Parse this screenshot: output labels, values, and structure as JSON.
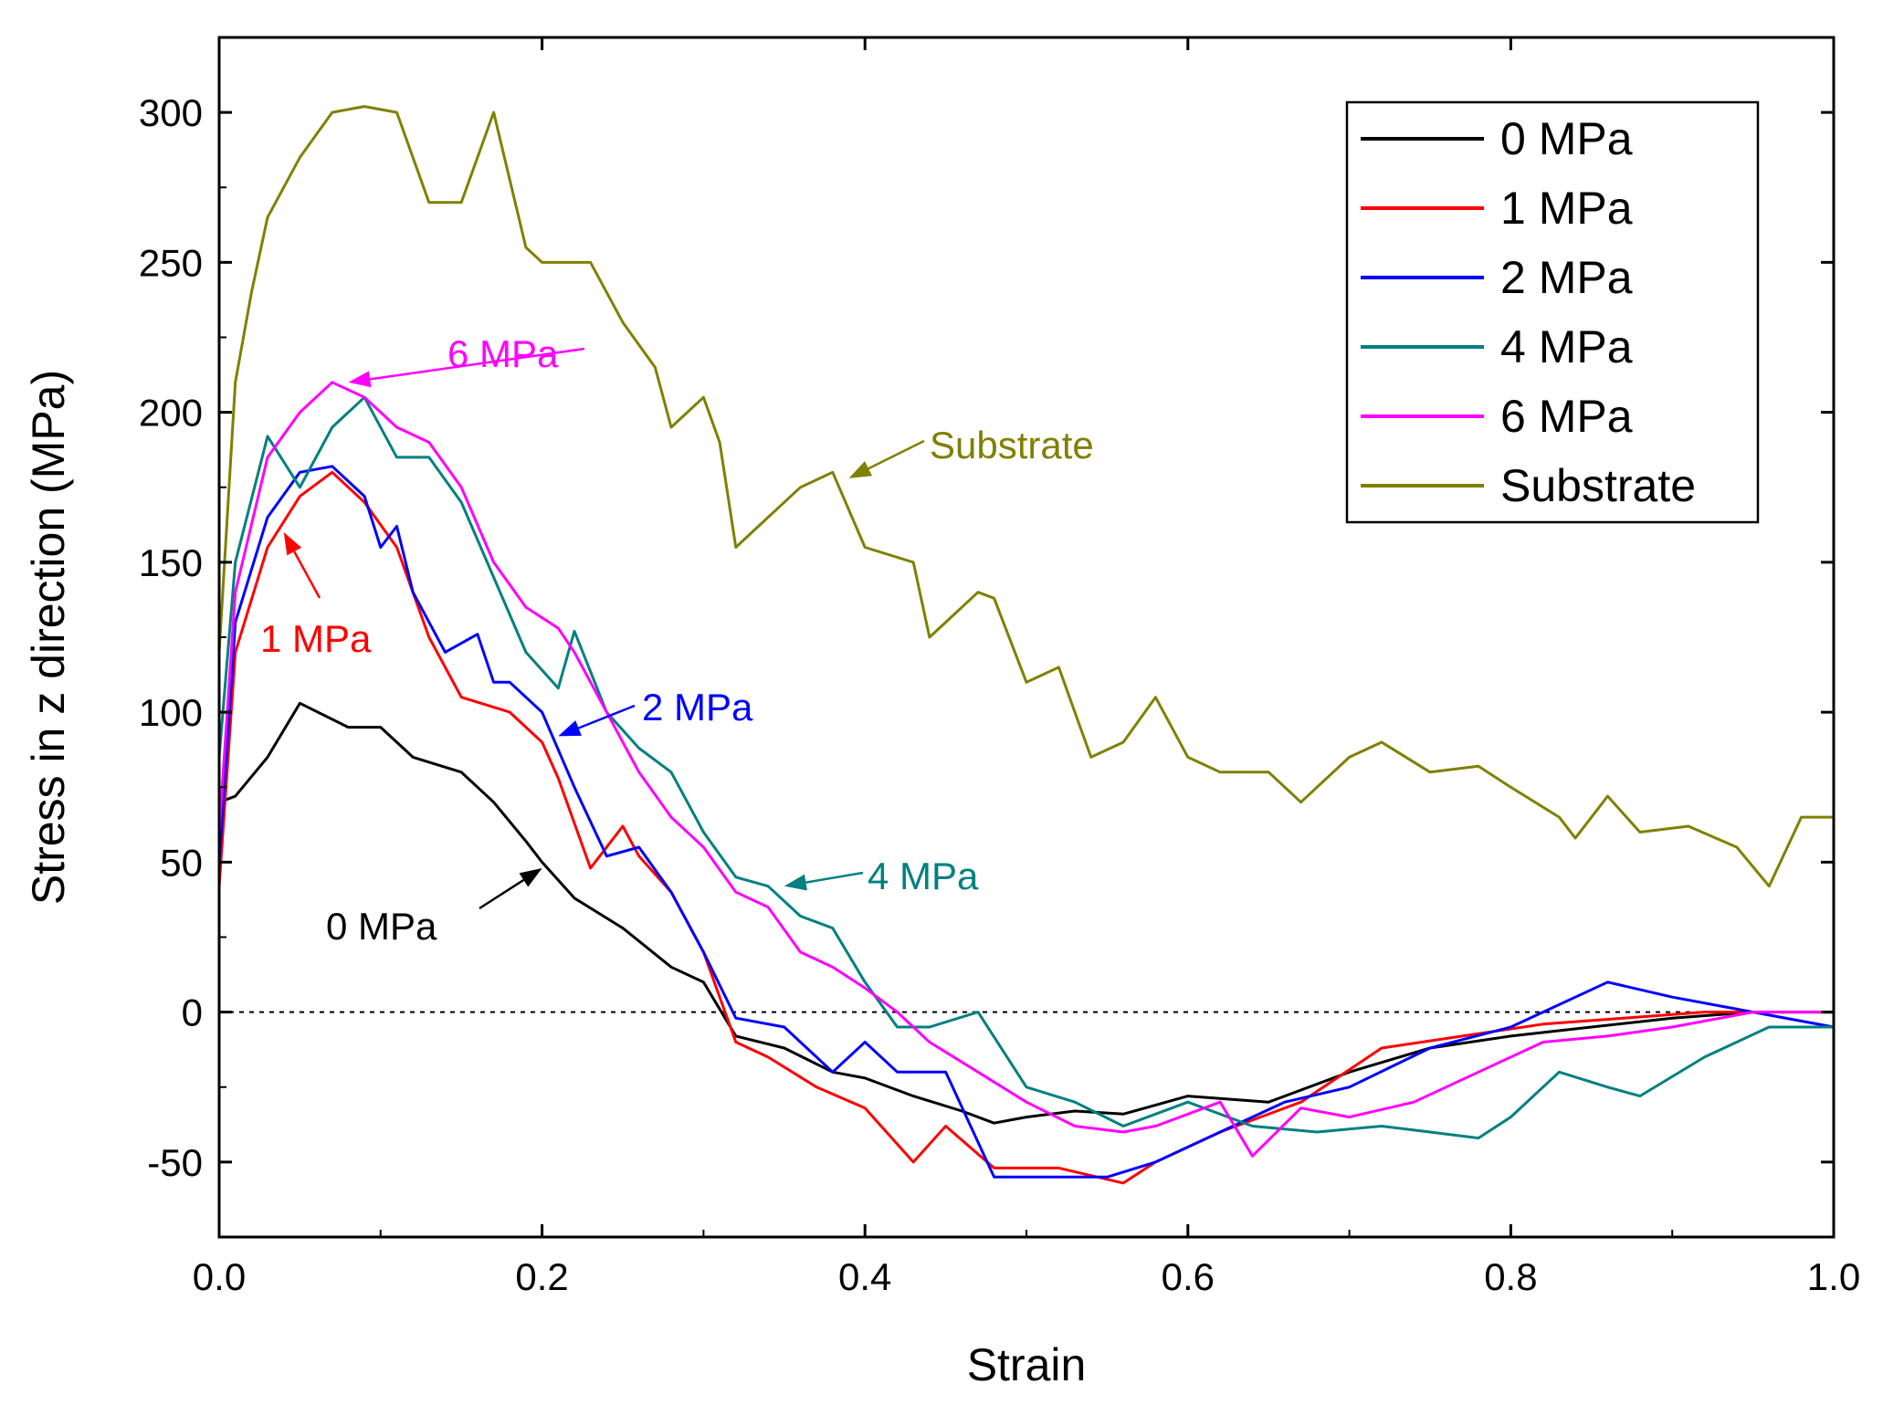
{
  "chart_data": {
    "type": "line",
    "title": "",
    "xlabel": "Strain",
    "ylabel": "Stress in z direction (MPa)",
    "xlim": [
      0.0,
      1.0
    ],
    "ylim": [
      -75,
      325
    ],
    "xticks": [
      0.0,
      0.2,
      0.4,
      0.6,
      0.8,
      1.0
    ],
    "xtick_labels": [
      "0.0",
      "0.2",
      "0.4",
      "0.6",
      "0.8",
      "1.0"
    ],
    "yticks": [
      -50,
      0,
      50,
      100,
      150,
      200,
      250,
      300
    ],
    "ytick_labels": [
      "-50",
      "0",
      "50",
      "100",
      "150",
      "200",
      "250",
      "300"
    ],
    "reference_line": {
      "y": 0,
      "style": "dotted"
    },
    "legend": {
      "position": "top-right"
    },
    "series": [
      {
        "name": "0 MPa",
        "color": "#000000",
        "x": [
          0,
          0.01,
          0.03,
          0.05,
          0.08,
          0.1,
          0.12,
          0.15,
          0.17,
          0.19,
          0.2,
          0.22,
          0.25,
          0.28,
          0.3,
          0.32,
          0.35,
          0.38,
          0.4,
          0.43,
          0.46,
          0.48,
          0.5,
          0.53,
          0.56,
          0.6,
          0.65,
          0.7,
          0.75,
          0.8,
          0.85,
          0.9,
          0.95,
          1.0
        ],
        "y": [
          70,
          72,
          85,
          103,
          95,
          95,
          85,
          80,
          70,
          57,
          50,
          38,
          28,
          15,
          10,
          -8,
          -12,
          -20,
          -22,
          -28,
          -33,
          -37,
          -35,
          -33,
          -34,
          -28,
          -30,
          -20,
          -12,
          -8,
          -5,
          -2,
          0,
          0
        ]
      },
      {
        "name": "1 MPa",
        "color": "#ff0000",
        "x": [
          0,
          0.01,
          0.03,
          0.05,
          0.07,
          0.09,
          0.11,
          0.13,
          0.15,
          0.18,
          0.2,
          0.21,
          0.23,
          0.25,
          0.26,
          0.28,
          0.3,
          0.32,
          0.34,
          0.37,
          0.4,
          0.43,
          0.45,
          0.48,
          0.52,
          0.56,
          0.58,
          0.62,
          0.67,
          0.72,
          0.77,
          0.82,
          0.87,
          0.92,
          0.97,
          1.0
        ],
        "y": [
          42,
          120,
          155,
          172,
          180,
          170,
          155,
          125,
          105,
          100,
          90,
          78,
          48,
          62,
          52,
          40,
          20,
          -10,
          -15,
          -25,
          -32,
          -50,
          -38,
          -52,
          -52,
          -57,
          -50,
          -40,
          -30,
          -12,
          -8,
          -4,
          -2,
          0,
          0,
          0
        ]
      },
      {
        "name": "2 MPa",
        "color": "#0000ff",
        "x": [
          0,
          0.01,
          0.03,
          0.05,
          0.07,
          0.09,
          0.1,
          0.11,
          0.12,
          0.14,
          0.16,
          0.17,
          0.18,
          0.2,
          0.22,
          0.24,
          0.26,
          0.28,
          0.3,
          0.32,
          0.35,
          0.38,
          0.4,
          0.42,
          0.45,
          0.48,
          0.52,
          0.55,
          0.58,
          0.62,
          0.66,
          0.7,
          0.75,
          0.8,
          0.86,
          0.9,
          0.95,
          1.0
        ],
        "y": [
          50,
          130,
          165,
          180,
          182,
          172,
          155,
          162,
          140,
          120,
          126,
          110,
          110,
          100,
          75,
          52,
          55,
          40,
          20,
          -2,
          -5,
          -20,
          -10,
          -20,
          -20,
          -55,
          -55,
          -55,
          -50,
          -40,
          -30,
          -25,
          -12,
          -5,
          10,
          5,
          0,
          -5
        ]
      },
      {
        "name": "4 MPa",
        "color": "#008080",
        "x": [
          0,
          0.01,
          0.03,
          0.05,
          0.07,
          0.09,
          0.11,
          0.13,
          0.15,
          0.17,
          0.19,
          0.21,
          0.22,
          0.24,
          0.26,
          0.28,
          0.3,
          0.32,
          0.34,
          0.36,
          0.38,
          0.4,
          0.42,
          0.44,
          0.47,
          0.5,
          0.53,
          0.56,
          0.6,
          0.64,
          0.68,
          0.72,
          0.75,
          0.78,
          0.8,
          0.83,
          0.86,
          0.88,
          0.92,
          0.96,
          1.0
        ],
        "y": [
          85,
          150,
          192,
          175,
          195,
          205,
          185,
          185,
          170,
          145,
          120,
          108,
          127,
          100,
          88,
          80,
          60,
          45,
          42,
          32,
          28,
          10,
          -5,
          -5,
          0,
          -25,
          -30,
          -38,
          -30,
          -38,
          -40,
          -38,
          -40,
          -42,
          -35,
          -20,
          -25,
          -28,
          -15,
          -5,
          -5
        ]
      },
      {
        "name": "6 MPa",
        "color": "#ff00ff",
        "x": [
          0,
          0.01,
          0.03,
          0.05,
          0.07,
          0.09,
          0.11,
          0.13,
          0.15,
          0.17,
          0.19,
          0.21,
          0.22,
          0.24,
          0.26,
          0.28,
          0.3,
          0.32,
          0.34,
          0.36,
          0.38,
          0.4,
          0.42,
          0.44,
          0.47,
          0.5,
          0.53,
          0.56,
          0.58,
          0.62,
          0.64,
          0.67,
          0.7,
          0.74,
          0.78,
          0.82,
          0.86,
          0.9,
          0.95,
          1.0
        ],
        "y": [
          60,
          140,
          185,
          200,
          210,
          205,
          195,
          190,
          175,
          150,
          135,
          128,
          120,
          100,
          80,
          65,
          55,
          40,
          35,
          20,
          15,
          8,
          0,
          -10,
          -20,
          -30,
          -38,
          -40,
          -38,
          -30,
          -48,
          -32,
          -35,
          -30,
          -20,
          -10,
          -8,
          -5,
          0,
          0
        ]
      },
      {
        "name": "Substrate",
        "color": "#808000",
        "x": [
          0,
          0.01,
          0.02,
          0.03,
          0.05,
          0.07,
          0.09,
          0.11,
          0.13,
          0.15,
          0.17,
          0.19,
          0.2,
          0.23,
          0.25,
          0.27,
          0.28,
          0.3,
          0.31,
          0.32,
          0.34,
          0.36,
          0.38,
          0.4,
          0.43,
          0.44,
          0.45,
          0.47,
          0.48,
          0.5,
          0.52,
          0.54,
          0.56,
          0.58,
          0.6,
          0.62,
          0.65,
          0.67,
          0.7,
          0.72,
          0.75,
          0.78,
          0.8,
          0.83,
          0.84,
          0.86,
          0.88,
          0.91,
          0.94,
          0.96,
          0.98,
          1.0
        ],
        "y": [
          120,
          210,
          240,
          265,
          285,
          300,
          302,
          300,
          270,
          270,
          300,
          255,
          250,
          250,
          230,
          215,
          195,
          205,
          190,
          155,
          165,
          175,
          180,
          155,
          150,
          125,
          130,
          140,
          138,
          110,
          115,
          85,
          90,
          105,
          85,
          80,
          80,
          70,
          85,
          90,
          80,
          82,
          75,
          65,
          58,
          72,
          60,
          62,
          55,
          42,
          65,
          65
        ]
      }
    ],
    "annotations": [
      {
        "text": "6 MPa",
        "color": "#ff00ff",
        "point": [
          0.08,
          210
        ]
      },
      {
        "text": "1 MPa",
        "color": "#ff0000",
        "point": [
          0.04,
          160
        ]
      },
      {
        "text": "2 MPa",
        "color": "#0000ff",
        "point": [
          0.21,
          92
        ]
      },
      {
        "text": "4 MPa",
        "color": "#008080",
        "point": [
          0.35,
          42
        ]
      },
      {
        "text": "0 MPa",
        "color": "#000000",
        "point": [
          0.2,
          48
        ]
      },
      {
        "text": "Substrate",
        "color": "#808000",
        "point": [
          0.39,
          178
        ]
      }
    ]
  }
}
